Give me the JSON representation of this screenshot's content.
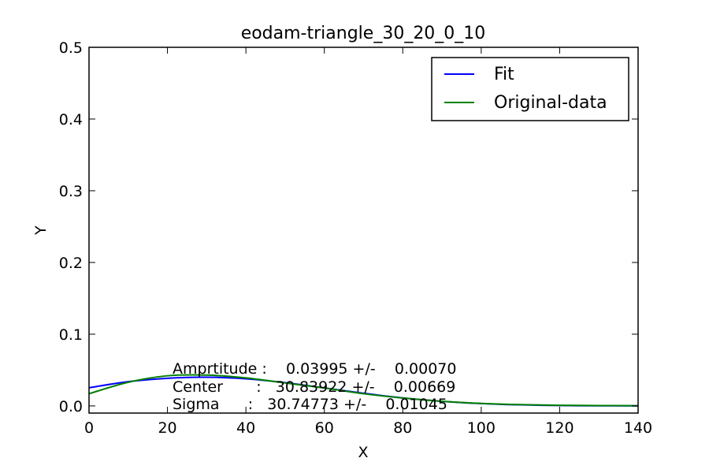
{
  "chart_data": {
    "type": "line",
    "title": "eodam-triangle_30_20_0_10",
    "xlabel": "X",
    "ylabel": "Y",
    "xlim": [
      0,
      140
    ],
    "ylim": [
      -0.01,
      0.5
    ],
    "x_ticks": [
      0,
      20,
      40,
      60,
      80,
      100,
      120,
      140
    ],
    "x_tick_labels": [
      "0",
      "20",
      "40",
      "60",
      "80",
      "100",
      "120",
      "140"
    ],
    "y_ticks": [
      0.0,
      0.1,
      0.2,
      0.3,
      0.4,
      0.5
    ],
    "y_tick_labels": [
      "0.0",
      "0.1",
      "0.2",
      "0.3",
      "0.4",
      "0.5"
    ],
    "grid": false,
    "legend_position": "top-right",
    "series": [
      {
        "name": "Fit",
        "color": "#0000ff",
        "x": [
          0,
          10,
          20,
          30,
          40,
          50,
          60,
          70,
          80,
          90,
          100,
          110,
          120,
          130,
          140
        ],
        "y": [
          0.0253,
          0.0338,
          0.0385,
          0.04,
          0.0378,
          0.0324,
          0.0251,
          0.0176,
          0.0111,
          0.0064,
          0.0033,
          0.0015,
          0.0006,
          0.0002,
          0.0001
        ]
      },
      {
        "name": "Original-data",
        "color": "#008000",
        "x": [
          0,
          10,
          20,
          30,
          40,
          50,
          60,
          70,
          80,
          90,
          100,
          110,
          120,
          130,
          140
        ],
        "y": [
          0.017,
          0.033,
          0.042,
          0.043,
          0.039,
          0.032,
          0.025,
          0.017,
          0.011,
          0.0065,
          0.0035,
          0.0018,
          0.0009,
          0.0005,
          0.0002
        ]
      }
    ],
    "annotations": [
      "Amprtitude :    0.03995 +/-    0.00070",
      "Center       :   30.83922 +/-    0.00669",
      "Sigma      :   30.74773 +/-    0.01045"
    ]
  }
}
